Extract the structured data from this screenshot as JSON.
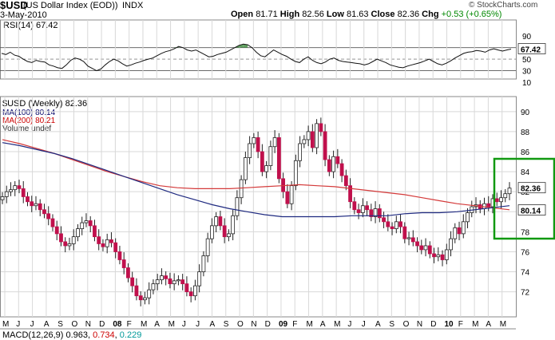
{
  "header": {
    "ticker": "$USD",
    "name": "(US Dollar Index (EOD))",
    "exchange": "INDX",
    "credit": "© StockCharts.com",
    "date": "3-May-2010",
    "open_label": "Open",
    "open": "81.71",
    "high_label": "High",
    "high": "82.56",
    "low_label": "Low",
    "low": "81.63",
    "close_label": "Close",
    "close": "82.36",
    "chg_label": "Chg",
    "chg": "+0.53 (+0.65%)"
  },
  "rsi_panel": {
    "title": "RSI(14) 67.42",
    "current_badge": "67.42"
  },
  "price_panel": {
    "title": "$USD (Weekly) 82.36",
    "legend": {
      "ma100": "MA(100) 80.14",
      "ma200": "MA(200) 80.21",
      "volume": "Volume undef"
    },
    "last_price_badge": "82.36",
    "ma_badge": "80.14"
  },
  "macd_panel": {
    "title_prefix": "MACD(12,26,9)",
    "v1": "0.963",
    "v2": "0.734",
    "v3": "0.229"
  },
  "colors": {
    "ma100": "#1f2a80",
    "ma200": "#d43a3a",
    "up": "#ffffff",
    "down": "#c0104c",
    "annotation_box": "#119911"
  },
  "chart_data": {
    "type": "candlestick",
    "interval": "weekly",
    "x_tick_labels": [
      "M",
      "J",
      "J",
      "A",
      "S",
      "O",
      "N",
      "D",
      "08",
      "F",
      "M",
      "A",
      "M",
      "J",
      "J",
      "A",
      "S",
      "O",
      "N",
      "D",
      "09",
      "F",
      "M",
      "A",
      "M",
      "J",
      "J",
      "A",
      "S",
      "O",
      "N",
      "D",
      "10",
      "F",
      "M",
      "A",
      "M"
    ],
    "price_axis": {
      "ylim": [
        69.5,
        91.5
      ],
      "ticks": [
        "72",
        "74",
        "76",
        "78",
        "80",
        "82",
        "84",
        "86",
        "88",
        "90"
      ]
    },
    "rsi_axis": {
      "ylim": [
        10,
        100
      ],
      "ticks": [
        "90",
        "70",
        "50",
        "30",
        "10"
      ],
      "reference_lines": [
        70,
        50,
        30
      ]
    },
    "close_approx": [
      81.5,
      82.0,
      82.2,
      82.6,
      82.3,
      81.5,
      81.0,
      80.6,
      80.8,
      80.2,
      79.8,
      79.3,
      78.5,
      77.8,
      77.0,
      76.6,
      76.8,
      77.5,
      78.3,
      78.9,
      79.1,
      78.6,
      77.5,
      76.8,
      76.5,
      77.2,
      76.9,
      76.0,
      75.2,
      74.4,
      73.4,
      72.6,
      71.6,
      71.2,
      71.4,
      72.2,
      72.8,
      73.2,
      73.6,
      73.3,
      72.8,
      73.1,
      73.2,
      72.8,
      72.0,
      71.6,
      72.6,
      74.0,
      75.6,
      77.3,
      78.6,
      79.5,
      78.6,
      77.5,
      77.8,
      79.6,
      81.4,
      83.2,
      85.4,
      86.8,
      87.4,
      86.0,
      84.0,
      84.6,
      86.5,
      87.4,
      83.3,
      82.0,
      80.8,
      82.6,
      85.1,
      86.8,
      87.2,
      88.0,
      86.4,
      88.8,
      88.0,
      85.2,
      84.0,
      85.5,
      84.8,
      83.6,
      82.6,
      81.0,
      80.2,
      79.9,
      80.6,
      80.2,
      79.5,
      80.3,
      79.4,
      79.0,
      78.5,
      78.3,
      79.0,
      78.5,
      77.3,
      77.4,
      77.0,
      76.6,
      76.2,
      76.6,
      75.8,
      75.5,
      75.7,
      75.2,
      76.2,
      77.3,
      78.4,
      77.8,
      79.0,
      79.9,
      80.5,
      80.7,
      80.3,
      80.8,
      80.5,
      81.3,
      81.0,
      81.4,
      81.8,
      82.36
    ],
    "ma100_approx": [
      86.9,
      86.6,
      86.2,
      85.8,
      85.3,
      84.7,
      84.1,
      83.5,
      82.9,
      82.3,
      81.7,
      81.2,
      80.7,
      80.3,
      80.0,
      79.7,
      79.5,
      79.5,
      79.5,
      79.5,
      79.6,
      79.6,
      79.6,
      79.8,
      79.9,
      79.9,
      80.0,
      80.2,
      80.4,
      80.6
    ],
    "ma200_approx": [
      87.2,
      86.8,
      86.3,
      85.8,
      85.2,
      84.6,
      84.0,
      83.5,
      83.0,
      82.6,
      82.4,
      82.3,
      82.3,
      82.3,
      82.4,
      82.5,
      82.6,
      82.7,
      82.6,
      82.5,
      82.3,
      82.1,
      81.9,
      81.7,
      81.4,
      81.1,
      80.8,
      80.6,
      80.4,
      80.2
    ],
    "rsi_approx": [
      60,
      58,
      62,
      57,
      55,
      50,
      46,
      44,
      48,
      46,
      45,
      40,
      38,
      35,
      34,
      40,
      48,
      52,
      50,
      46,
      38,
      34,
      30,
      33,
      40,
      46,
      50,
      47,
      42,
      38,
      40,
      43,
      45,
      48,
      50,
      52,
      56,
      60,
      63,
      65,
      68,
      72,
      70,
      66,
      64,
      66,
      62,
      58,
      54,
      55,
      58,
      60,
      62,
      66,
      70,
      74,
      76,
      75,
      70,
      62,
      56,
      54,
      60,
      66,
      62,
      58,
      55,
      50,
      46,
      44,
      50,
      54,
      48,
      44,
      42,
      45,
      50,
      52,
      48,
      46,
      45,
      44,
      43,
      42,
      40,
      42,
      46,
      50,
      47,
      44,
      40,
      38,
      36,
      35,
      38,
      40,
      42,
      44,
      47,
      50,
      46,
      42,
      40,
      43,
      47,
      52,
      56,
      60,
      62,
      63,
      65,
      64,
      62,
      66,
      68,
      66,
      64,
      66,
      67.42
    ]
  }
}
